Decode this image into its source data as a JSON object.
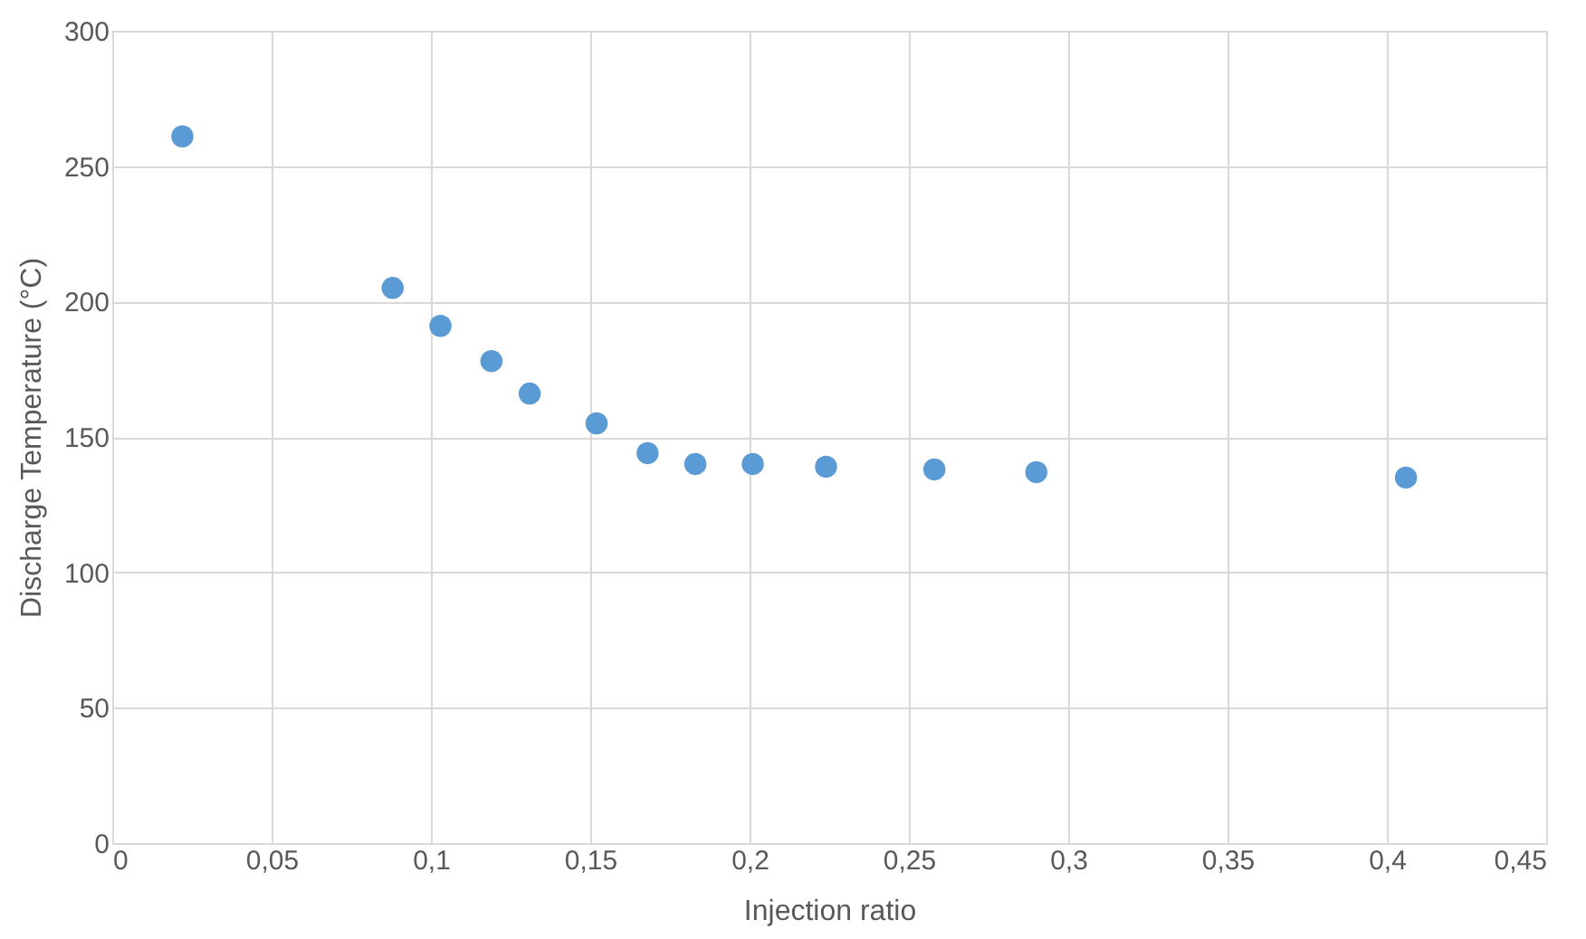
{
  "chart_data": {
    "type": "scatter",
    "xlabel": "Injection ratio",
    "ylabel": "Discharge Temperature (°C)",
    "x": [
      0.022,
      0.088,
      0.103,
      0.119,
      0.131,
      0.152,
      0.168,
      0.183,
      0.201,
      0.224,
      0.258,
      0.29,
      0.406
    ],
    "series": [
      {
        "color": "#5b9bd5",
        "values": [
          261,
          205,
          191,
          178,
          166,
          155,
          144,
          140,
          140,
          139,
          138,
          137,
          135
        ]
      }
    ],
    "xlim": [
      0,
      0.45
    ],
    "ylim": [
      0,
      300
    ],
    "xticks": [
      0,
      {
        "value": 0.05,
        "label": "0,05"
      },
      {
        "value": 0.1,
        "label": "0,1"
      },
      {
        "value": 0.15,
        "label": "0,15"
      },
      {
        "value": 0.2,
        "label": "0,2"
      },
      {
        "value": 0.25,
        "label": "0,25"
      },
      {
        "value": 0.3,
        "label": "0,3"
      },
      {
        "value": 0.35,
        "label": "0,35"
      },
      {
        "value": 0.4,
        "label": "0,4"
      },
      {
        "value": 0.45,
        "label": "0,45"
      }
    ],
    "yticks": [
      0,
      50,
      100,
      150,
      200,
      250,
      300
    ],
    "grid": true,
    "marker": "circle",
    "legend": false
  }
}
